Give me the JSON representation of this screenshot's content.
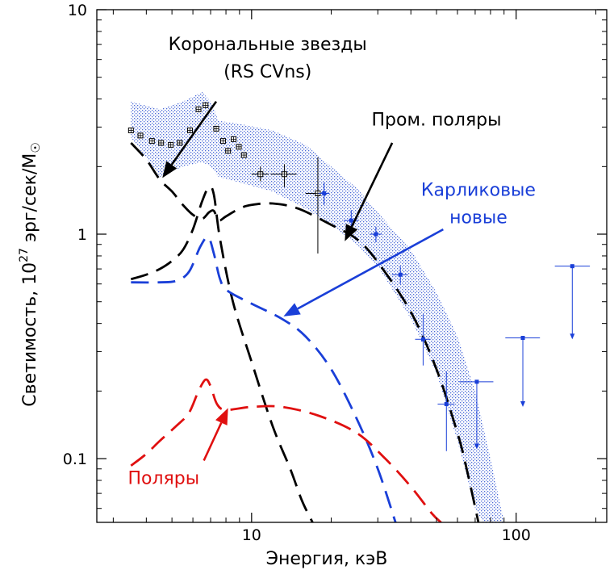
{
  "chart_data": {
    "type": "line",
    "xscale": "log",
    "yscale": "log",
    "xlim": [
      2.6,
      220
    ],
    "ylim": [
      0.052,
      10
    ],
    "xlabel": "Энергия, кэВ",
    "ylabel": {
      "prefix": "Светимость, 10",
      "exp": "27",
      "suffix": " эрг/сек/M",
      "sun": "☉"
    },
    "x_tick_labels": [
      {
        "value": 10,
        "label": "10"
      },
      {
        "value": 100,
        "label": "100"
      }
    ],
    "y_tick_labels": [
      {
        "value": 0.1,
        "label": "0.1"
      },
      {
        "value": 1,
        "label": "1"
      },
      {
        "value": 10,
        "label": "10"
      }
    ],
    "x_minor_ticks": [
      3,
      4,
      5,
      6,
      7,
      8,
      9,
      20,
      30,
      40,
      50,
      60,
      70,
      80,
      90,
      200
    ],
    "y_minor_ticks": [
      0.06,
      0.07,
      0.08,
      0.09,
      0.2,
      0.3,
      0.4,
      0.5,
      0.6,
      0.7,
      0.8,
      0.9,
      2,
      3,
      4,
      5,
      6,
      7,
      8,
      9
    ],
    "band": {
      "color": "#2a4fd0",
      "upper": [
        [
          3.5,
          3.9
        ],
        [
          4.5,
          3.6
        ],
        [
          5.5,
          3.9
        ],
        [
          6.5,
          4.3
        ],
        [
          7.0,
          3.9
        ],
        [
          7.5,
          3.2
        ],
        [
          9,
          3.1
        ],
        [
          12,
          2.9
        ],
        [
          16,
          2.5
        ],
        [
          20,
          2.0
        ],
        [
          25,
          1.6
        ],
        [
          30,
          1.25
        ],
        [
          40,
          0.85
        ],
        [
          50,
          0.55
        ],
        [
          60,
          0.35
        ],
        [
          70,
          0.2
        ],
        [
          80,
          0.1
        ],
        [
          90,
          0.052
        ]
      ],
      "lower": [
        [
          3.5,
          2.7
        ],
        [
          4.5,
          1.8
        ],
        [
          5.5,
          2.0
        ],
        [
          6.5,
          2.1
        ],
        [
          7.0,
          2.0
        ],
        [
          7.5,
          1.8
        ],
        [
          9,
          1.7
        ],
        [
          12,
          1.55
        ],
        [
          16,
          1.3
        ],
        [
          20,
          1.1
        ],
        [
          25,
          0.9
        ],
        [
          30,
          0.72
        ],
        [
          40,
          0.42
        ],
        [
          50,
          0.24
        ],
        [
          60,
          0.12
        ],
        [
          70,
          0.06
        ],
        [
          75,
          0.052
        ]
      ]
    },
    "data_points": {
      "color": "#000000",
      "points": [
        {
          "x": 3.5,
          "y": 2.9,
          "xerr": 0.12,
          "ylo": 2.9,
          "yhi": 2.9
        },
        {
          "x": 3.8,
          "y": 2.75,
          "xerr": 0.12,
          "ylo": 2.75,
          "yhi": 2.75
        },
        {
          "x": 4.2,
          "y": 2.6,
          "xerr": 0.12,
          "ylo": 2.6,
          "yhi": 2.6
        },
        {
          "x": 4.55,
          "y": 2.55,
          "xerr": 0.12,
          "ylo": 2.55,
          "yhi": 2.55
        },
        {
          "x": 4.95,
          "y": 2.5,
          "xerr": 0.12,
          "ylo": 2.5,
          "yhi": 2.5
        },
        {
          "x": 5.35,
          "y": 2.55,
          "xerr": 0.12,
          "ylo": 2.55,
          "yhi": 2.55
        },
        {
          "x": 5.85,
          "y": 2.9,
          "xerr": 0.12,
          "ylo": 2.9,
          "yhi": 2.9
        },
        {
          "x": 6.3,
          "y": 3.6,
          "xerr": 0.12,
          "ylo": 3.6,
          "yhi": 3.6
        },
        {
          "x": 6.7,
          "y": 3.75,
          "xerr": 0.12,
          "ylo": 3.75,
          "yhi": 3.75
        },
        {
          "x": 7.35,
          "y": 2.95,
          "xerr": 0.12,
          "ylo": 2.95,
          "yhi": 2.95
        },
        {
          "x": 7.8,
          "y": 2.6,
          "xerr": 0.12,
          "ylo": 2.6,
          "yhi": 2.6
        },
        {
          "x": 8.15,
          "y": 2.35,
          "xerr": 0.12,
          "ylo": 2.35,
          "yhi": 2.35
        },
        {
          "x": 8.55,
          "y": 2.65,
          "xerr": 0.12,
          "ylo": 2.65,
          "yhi": 2.65
        },
        {
          "x": 8.95,
          "y": 2.45,
          "xerr": 0.12,
          "ylo": 2.45,
          "yhi": 2.45
        },
        {
          "x": 9.35,
          "y": 2.25,
          "xerr": 0.12,
          "ylo": 2.25,
          "yhi": 2.25
        },
        {
          "x": 10.8,
          "y": 1.85,
          "xerr": 0.8,
          "ylo": 1.72,
          "yhi": 2.0
        },
        {
          "x": 13.3,
          "y": 1.85,
          "xerr": 1.5,
          "ylo": 1.62,
          "yhi": 2.05
        },
        {
          "x": 17.8,
          "y": 1.52,
          "xerr": 1.8,
          "ylo": 0.82,
          "yhi": 2.2
        }
      ]
    },
    "blue_points": {
      "color": "#1a3fd8",
      "points": [
        {
          "x": 18.8,
          "y": 1.52,
          "xerr": 0.9,
          "ylo": 1.35,
          "yhi": 1.7
        },
        {
          "x": 23.8,
          "y": 1.15,
          "xerr": 1.5,
          "ylo": 1.03,
          "yhi": 1.28
        },
        {
          "x": 29.5,
          "y": 1.0,
          "xerr": 1.5,
          "ylo": 0.92,
          "yhi": 1.08
        },
        {
          "x": 36.5,
          "y": 0.66,
          "xerr": 2.5,
          "ylo": 0.6,
          "yhi": 0.72
        },
        {
          "x": 44.5,
          "y": 0.34,
          "xerr": 3.0,
          "ylo": 0.26,
          "yhi": 0.44
        },
        {
          "x": 54.5,
          "y": 0.175,
          "xerr": 4.0,
          "ylo": 0.108,
          "yhi": 0.245
        }
      ],
      "upper_limits": [
        {
          "x": 71,
          "y": 0.22,
          "xlo": 61,
          "xhi": 82,
          "ytip": 0.11
        },
        {
          "x": 106,
          "y": 0.345,
          "xlo": 91,
          "xhi": 123,
          "ytip": 0.17
        },
        {
          "x": 163,
          "y": 0.72,
          "xlo": 140,
          "xhi": 190,
          "ytip": 0.34
        }
      ]
    },
    "series": [
      {
        "color": "#000000",
        "points": [
          [
            3.5,
            2.55
          ],
          [
            4.0,
            2.15
          ],
          [
            4.5,
            1.75
          ],
          [
            5.0,
            1.55
          ],
          [
            5.5,
            1.35
          ],
          [
            6.0,
            1.22
          ],
          [
            6.5,
            1.17
          ],
          [
            6.9,
            1.25
          ],
          [
            7.2,
            1.27
          ],
          [
            7.5,
            1.15
          ],
          [
            8.0,
            1.2
          ],
          [
            9,
            1.3
          ],
          [
            10,
            1.35
          ],
          [
            12,
            1.37
          ],
          [
            15,
            1.3
          ],
          [
            20,
            1.1
          ],
          [
            25,
            0.95
          ],
          [
            30,
            0.75
          ],
          [
            40,
            0.45
          ],
          [
            50,
            0.25
          ],
          [
            60,
            0.13
          ],
          [
            65,
            0.09
          ],
          [
            72,
            0.052
          ]
        ]
      },
      {
        "color": "#000000",
        "points": [
          [
            3.5,
            0.63
          ],
          [
            4.0,
            0.66
          ],
          [
            4.5,
            0.7
          ],
          [
            5.0,
            0.76
          ],
          [
            5.5,
            0.85
          ],
          [
            6.0,
            1.05
          ],
          [
            6.5,
            1.4
          ],
          [
            6.9,
            1.62
          ],
          [
            7.2,
            1.5
          ],
          [
            7.6,
            0.95
          ],
          [
            8.5,
            0.5
          ],
          [
            10,
            0.27
          ],
          [
            12,
            0.14
          ],
          [
            14,
            0.09
          ],
          [
            15.5,
            0.065
          ],
          [
            17,
            0.052
          ]
        ]
      },
      {
        "color": "#1a3fd8",
        "points": [
          [
            3.5,
            0.61
          ],
          [
            4.5,
            0.61
          ],
          [
            5.2,
            0.62
          ],
          [
            5.8,
            0.68
          ],
          [
            6.4,
            0.88
          ],
          [
            6.85,
            0.97
          ],
          [
            7.2,
            0.82
          ],
          [
            7.6,
            0.63
          ],
          [
            8.1,
            0.56
          ],
          [
            10,
            0.49
          ],
          [
            13,
            0.42
          ],
          [
            16,
            0.35
          ],
          [
            20,
            0.25
          ],
          [
            25,
            0.15
          ],
          [
            30,
            0.09
          ],
          [
            35,
            0.052
          ]
        ]
      },
      {
        "color": "#e01010",
        "points": [
          [
            3.5,
            0.093
          ],
          [
            4.0,
            0.105
          ],
          [
            4.5,
            0.12
          ],
          [
            5.2,
            0.14
          ],
          [
            5.8,
            0.16
          ],
          [
            6.3,
            0.2
          ],
          [
            6.7,
            0.225
          ],
          [
            7.0,
            0.21
          ],
          [
            7.4,
            0.175
          ],
          [
            8.0,
            0.165
          ],
          [
            10,
            0.17
          ],
          [
            13,
            0.17
          ],
          [
            18,
            0.155
          ],
          [
            25,
            0.13
          ],
          [
            32,
            0.1
          ],
          [
            40,
            0.075
          ],
          [
            48,
            0.057
          ],
          [
            52,
            0.052
          ]
        ]
      }
    ],
    "annotations": [
      {
        "lines": [
          "Корональные звезды",
          "(RS CVns)"
        ],
        "color": "#000000",
        "text_at": [
          11.5,
          6.6
        ],
        "arrow_from": [
          7.35,
          3.9
        ],
        "arrow_to": [
          4.6,
          1.78
        ]
      },
      {
        "lines": [
          "Пром. поляры"
        ],
        "color": "#000000",
        "text_at": [
          50,
          3.05
        ],
        "arrow_from": [
          34,
          2.55
        ],
        "arrow_to": [
          22.5,
          0.93
        ]
      },
      {
        "lines": [
          "Карликовые",
          "новые"
        ],
        "color": "#1a3fd8",
        "text_at": [
          72,
          1.48
        ],
        "arrow_from": [
          53,
          1.05
        ],
        "arrow_to": [
          13.2,
          0.43
        ]
      },
      {
        "lines": [
          "Поляры"
        ],
        "color": "#e01010",
        "text_at": [
          4.65,
          0.077
        ],
        "arrow_from": [
          6.6,
          0.098
        ],
        "arrow_to": [
          8.15,
          0.168
        ]
      }
    ]
  }
}
